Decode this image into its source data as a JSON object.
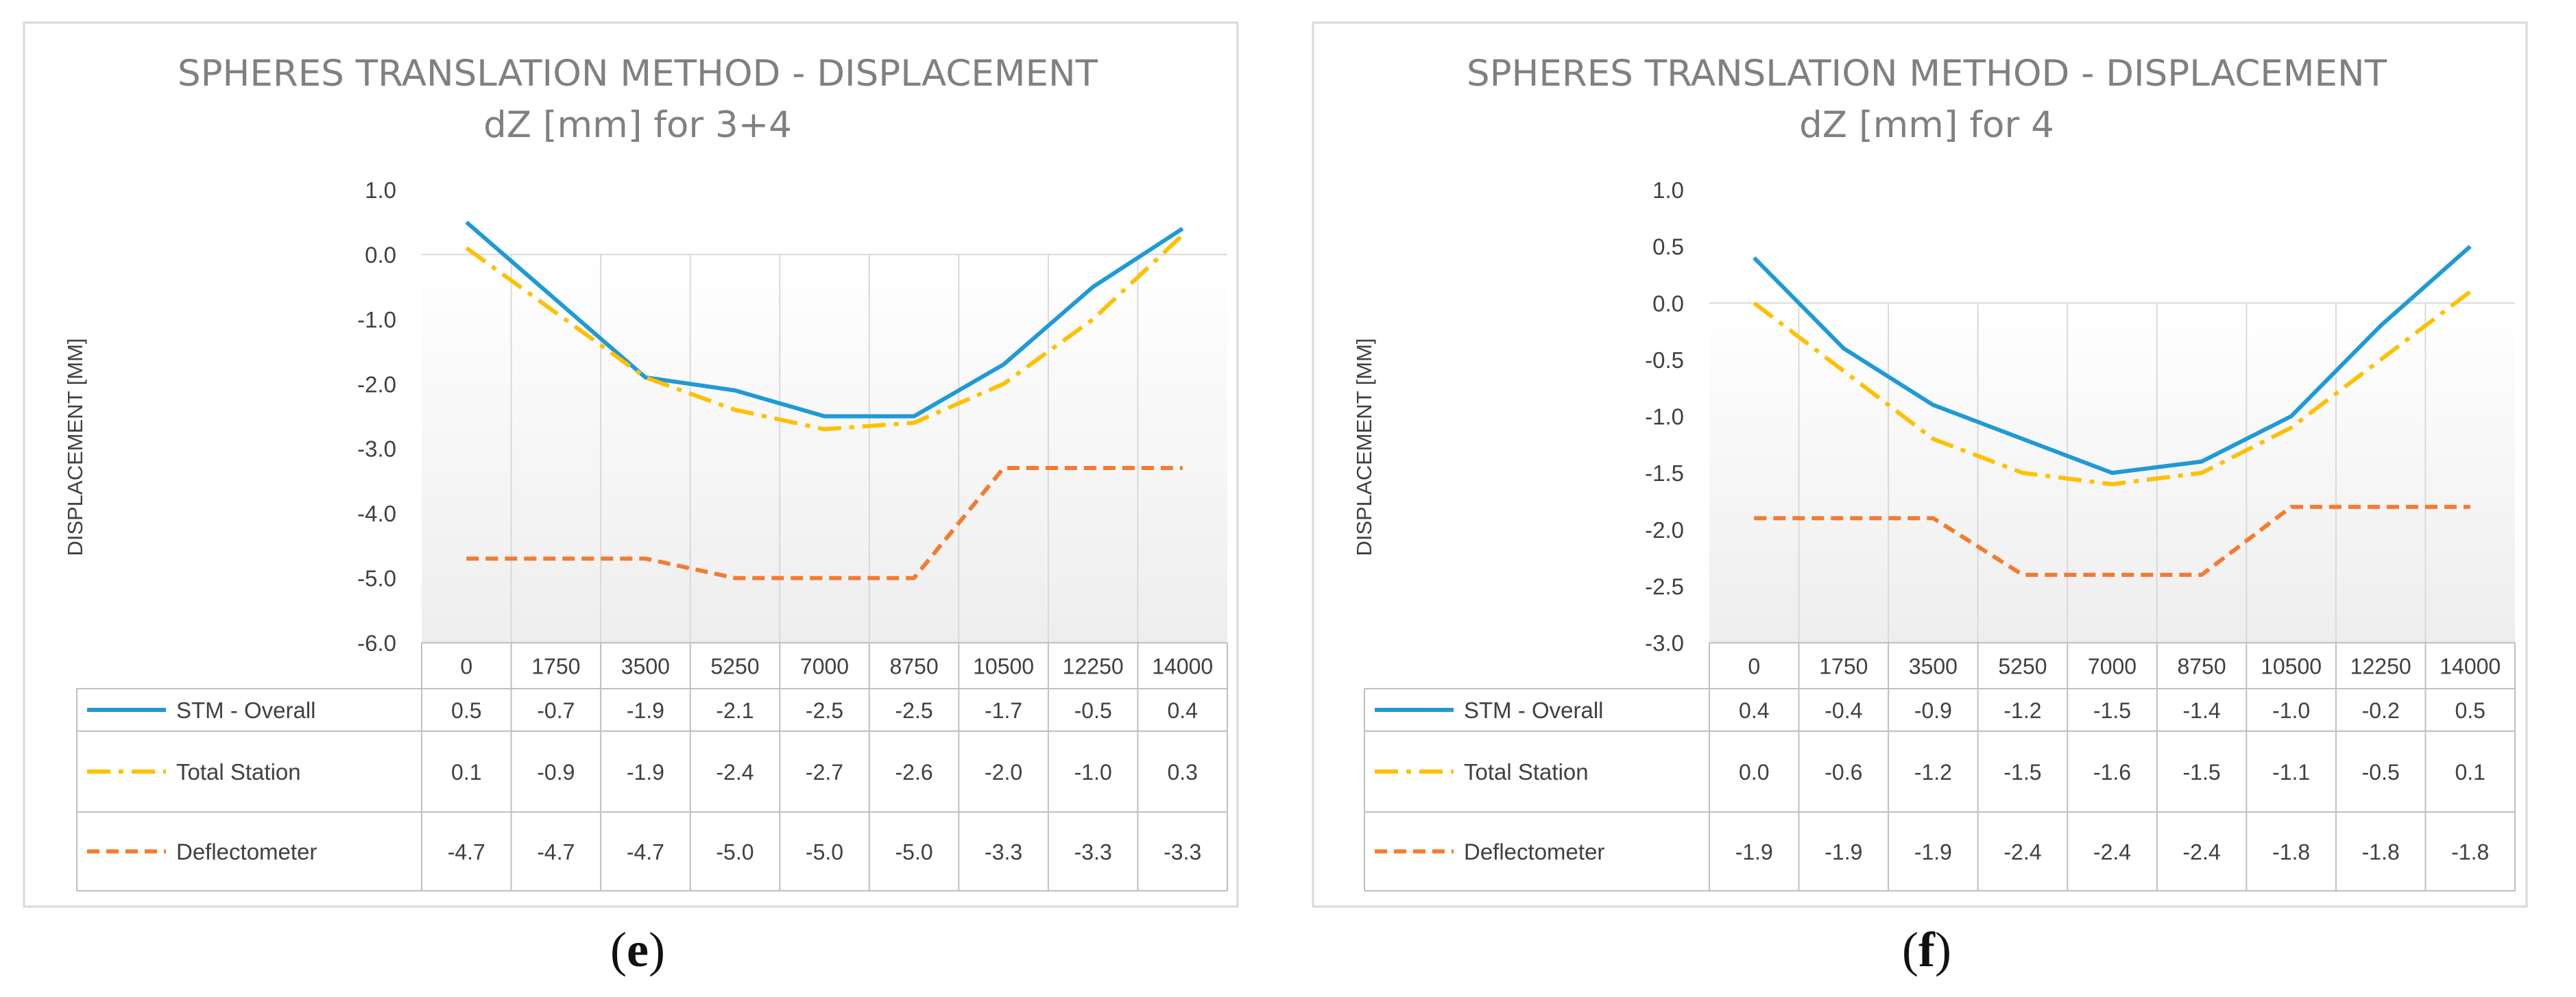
{
  "chart_data": [
    {
      "type": "line",
      "panel_label": "e",
      "title_line1": "SPHERES TRANSLATION METHOD - DISPLACEMENT",
      "title_line2": "dZ [mm] for 3+4",
      "ylabel": "DISPLACEMENT [MM]",
      "ylim": [
        -6.0,
        1.0
      ],
      "yticks": [
        "1.0",
        "0.0",
        "-1.0",
        "-2.0",
        "-3.0",
        "-4.0",
        "-5.0",
        "-6.0"
      ],
      "categories": [
        "0",
        "1750",
        "3500",
        "5250",
        "7000",
        "8750",
        "10500",
        "12250",
        "14000"
      ],
      "series": [
        {
          "name": "STM - Overall",
          "color": "#1f9ad6",
          "style": "solid",
          "values": [
            0.5,
            -0.7,
            -1.9,
            -2.1,
            -2.5,
            -2.5,
            -1.7,
            -0.5,
            0.4
          ],
          "labels": [
            "0.5",
            "-0.7",
            "-1.9",
            "-2.1",
            "-2.5",
            "-2.5",
            "-1.7",
            "-0.5",
            "0.4"
          ]
        },
        {
          "name": "Total Station",
          "color": "#ffc000",
          "style": "dashdot",
          "values": [
            0.1,
            -0.9,
            -1.9,
            -2.4,
            -2.7,
            -2.6,
            -2.0,
            -1.0,
            0.3
          ],
          "labels": [
            "0.1",
            "-0.9",
            "-1.9",
            "-2.4",
            "-2.7",
            "-2.6",
            "-2.0",
            "-1.0",
            "0.3"
          ]
        },
        {
          "name": "Deflectometer",
          "color": "#f47b30",
          "style": "dashed",
          "values": [
            -4.7,
            -4.7,
            -4.7,
            -5.0,
            -5.0,
            -5.0,
            -3.3,
            -3.3,
            -3.3
          ],
          "labels": [
            "-4.7",
            "-4.7",
            "-4.7",
            "-5.0",
            "-5.0",
            "-5.0",
            "-3.3",
            "-3.3",
            "-3.3"
          ]
        }
      ]
    },
    {
      "type": "line",
      "panel_label": "f",
      "title_line1": "SPHERES TRANSLATION METHOD - DISPLACEMENT",
      "title_line2": "dZ [mm] for 4",
      "ylabel": "DISPLACEMENT [MM]",
      "ylim": [
        -3.0,
        1.0
      ],
      "yticks": [
        "1.0",
        "0.5",
        "0.0",
        "-0.5",
        "-1.0",
        "-1.5",
        "-2.0",
        "-2.5",
        "-3.0"
      ],
      "categories": [
        "0",
        "1750",
        "3500",
        "5250",
        "7000",
        "8750",
        "10500",
        "12250",
        "14000"
      ],
      "series": [
        {
          "name": "STM - Overall",
          "color": "#1f9ad6",
          "style": "solid",
          "values": [
            0.4,
            -0.4,
            -0.9,
            -1.2,
            -1.5,
            -1.4,
            -1.0,
            -0.2,
            0.5
          ],
          "labels": [
            "0.4",
            "-0.4",
            "-0.9",
            "-1.2",
            "-1.5",
            "-1.4",
            "-1.0",
            "-0.2",
            "0.5"
          ]
        },
        {
          "name": "Total Station",
          "color": "#ffc000",
          "style": "dashdot",
          "values": [
            0.0,
            -0.6,
            -1.2,
            -1.5,
            -1.6,
            -1.5,
            -1.1,
            -0.5,
            0.1
          ],
          "labels": [
            "0.0",
            "-0.6",
            "-1.2",
            "-1.5",
            "-1.6",
            "-1.5",
            "-1.1",
            "-0.5",
            "0.1"
          ]
        },
        {
          "name": "Deflectometer",
          "color": "#f47b30",
          "style": "dashed",
          "values": [
            -1.9,
            -1.9,
            -1.9,
            -2.4,
            -2.4,
            -2.4,
            -1.8,
            -1.8,
            -1.8
          ],
          "labels": [
            "-1.9",
            "-1.9",
            "-1.9",
            "-2.4",
            "-2.4",
            "-2.4",
            "-1.8",
            "-1.8",
            "-1.8"
          ]
        }
      ]
    }
  ]
}
